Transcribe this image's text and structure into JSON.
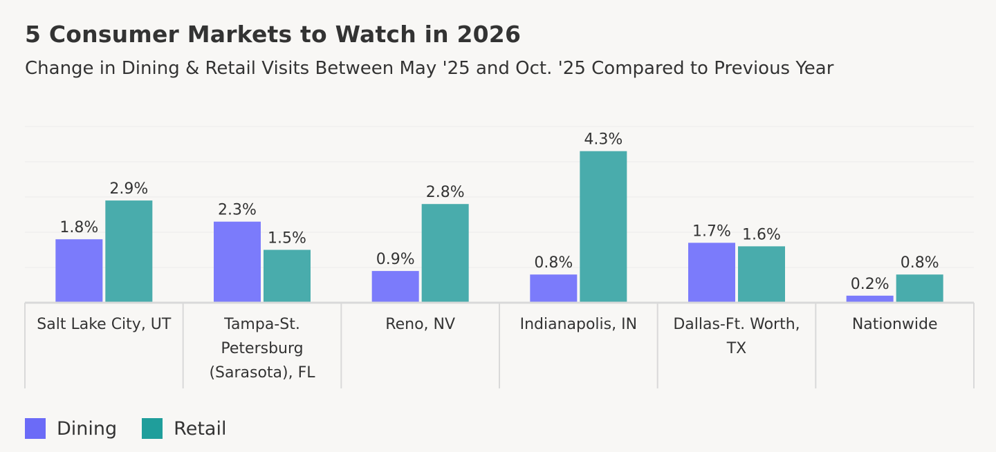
{
  "header": {
    "title": "5 Consumer Markets to Watch in 2026",
    "subtitle": "Change in Dining & Retail Visits Between May '25 and Oct. '25 Compared to Previous Year"
  },
  "colors": {
    "dining": "#7b7bfb",
    "retail": "#49acac",
    "legend_dining": "#6b6bf7",
    "legend_retail": "#1f9e9b",
    "axis": "#d9d9d9",
    "grid": "#ebebeb",
    "text": "#333333"
  },
  "chart_data": {
    "type": "bar",
    "title": "5 Consumer Markets to Watch in 2026",
    "subtitle": "Change in Dining & Retail Visits Between May '25 and Oct. '25 Compared to Previous Year",
    "categories": [
      [
        "Salt Lake City, UT"
      ],
      [
        "Tampa-St.",
        "Petersburg",
        "(Sarasota), FL"
      ],
      [
        "Reno, NV"
      ],
      [
        "Indianapolis, IN"
      ],
      [
        "Dallas-Ft. Worth,",
        "TX"
      ],
      [
        "Nationwide"
      ]
    ],
    "series": [
      {
        "name": "Dining",
        "values": [
          1.8,
          2.3,
          0.9,
          0.8,
          1.7,
          0.2
        ],
        "labels": [
          "1.8%",
          "2.3%",
          "0.9%",
          "0.8%",
          "1.7%",
          "0.2%"
        ]
      },
      {
        "name": "Retail",
        "values": [
          2.9,
          1.5,
          2.8,
          4.3,
          1.6,
          0.8
        ],
        "labels": [
          "2.9%",
          "1.5%",
          "2.8%",
          "4.3%",
          "1.6%",
          "0.8%"
        ]
      }
    ],
    "ylim": [
      0,
      5
    ],
    "grid": true,
    "legend_position": "bottom-left"
  }
}
